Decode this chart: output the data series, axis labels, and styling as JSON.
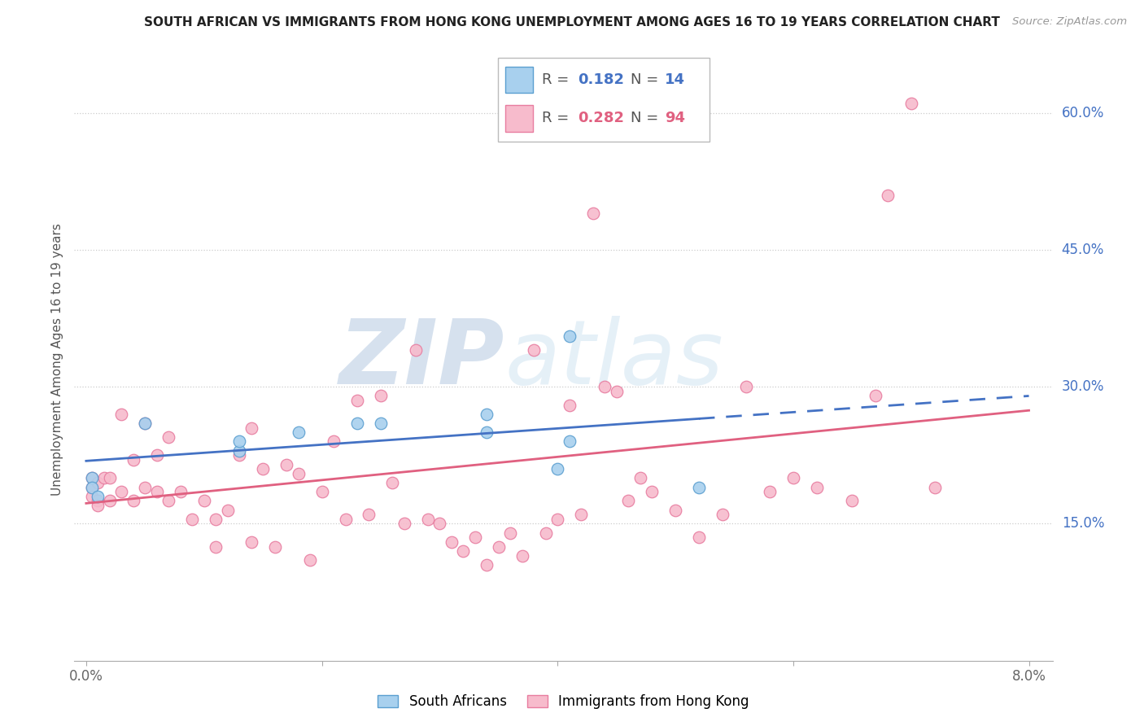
{
  "title": "SOUTH AFRICAN VS IMMIGRANTS FROM HONG KONG UNEMPLOYMENT AMONG AGES 16 TO 19 YEARS CORRELATION CHART",
  "source": "Source: ZipAtlas.com",
  "ylabel": "Unemployment Among Ages 16 to 19 years",
  "y_ticks": [
    0.15,
    0.3,
    0.45,
    0.6
  ],
  "y_tick_labels": [
    "15.0%",
    "30.0%",
    "45.0%",
    "60.0%"
  ],
  "xlim": [
    -0.001,
    0.082
  ],
  "ylim": [
    0.0,
    0.66
  ],
  "sa_color": "#A8D0EE",
  "sa_edge_color": "#5B9FD0",
  "hk_color": "#F7BBCC",
  "hk_edge_color": "#E87DA0",
  "sa_line_color": "#4472C4",
  "hk_line_color": "#E06080",
  "watermark_zip": "ZIP",
  "watermark_atlas": "atlas",
  "south_africans_x": [
    0.0005,
    0.0005,
    0.001,
    0.005,
    0.013,
    0.013,
    0.018,
    0.023,
    0.025,
    0.034,
    0.034,
    0.04,
    0.041,
    0.041,
    0.052
  ],
  "south_africans_y": [
    0.2,
    0.19,
    0.18,
    0.26,
    0.23,
    0.24,
    0.25,
    0.26,
    0.26,
    0.25,
    0.27,
    0.21,
    0.355,
    0.24,
    0.19
  ],
  "hong_kong_x": [
    0.0005,
    0.0005,
    0.0005,
    0.001,
    0.001,
    0.001,
    0.0015,
    0.002,
    0.002,
    0.003,
    0.003,
    0.004,
    0.004,
    0.005,
    0.005,
    0.006,
    0.006,
    0.007,
    0.007,
    0.008,
    0.009,
    0.01,
    0.011,
    0.011,
    0.012,
    0.013,
    0.014,
    0.014,
    0.015,
    0.016,
    0.017,
    0.018,
    0.019,
    0.02,
    0.021,
    0.022,
    0.023,
    0.024,
    0.025,
    0.026,
    0.027,
    0.028,
    0.029,
    0.03,
    0.031,
    0.032,
    0.033,
    0.034,
    0.035,
    0.036,
    0.037,
    0.038,
    0.039,
    0.04,
    0.041,
    0.042,
    0.043,
    0.044,
    0.045,
    0.046,
    0.047,
    0.048,
    0.05,
    0.052,
    0.054,
    0.056,
    0.058,
    0.06,
    0.062,
    0.065,
    0.067,
    0.068,
    0.07,
    0.072
  ],
  "hong_kong_y": [
    0.2,
    0.19,
    0.18,
    0.195,
    0.175,
    0.17,
    0.2,
    0.2,
    0.175,
    0.27,
    0.185,
    0.22,
    0.175,
    0.26,
    0.19,
    0.225,
    0.185,
    0.175,
    0.245,
    0.185,
    0.155,
    0.175,
    0.125,
    0.155,
    0.165,
    0.225,
    0.255,
    0.13,
    0.21,
    0.125,
    0.215,
    0.205,
    0.11,
    0.185,
    0.24,
    0.155,
    0.285,
    0.16,
    0.29,
    0.195,
    0.15,
    0.34,
    0.155,
    0.15,
    0.13,
    0.12,
    0.135,
    0.105,
    0.125,
    0.14,
    0.115,
    0.34,
    0.14,
    0.155,
    0.28,
    0.16,
    0.49,
    0.3,
    0.295,
    0.175,
    0.2,
    0.185,
    0.165,
    0.135,
    0.16,
    0.3,
    0.185,
    0.2,
    0.19,
    0.175,
    0.29,
    0.51,
    0.61,
    0.19
  ]
}
